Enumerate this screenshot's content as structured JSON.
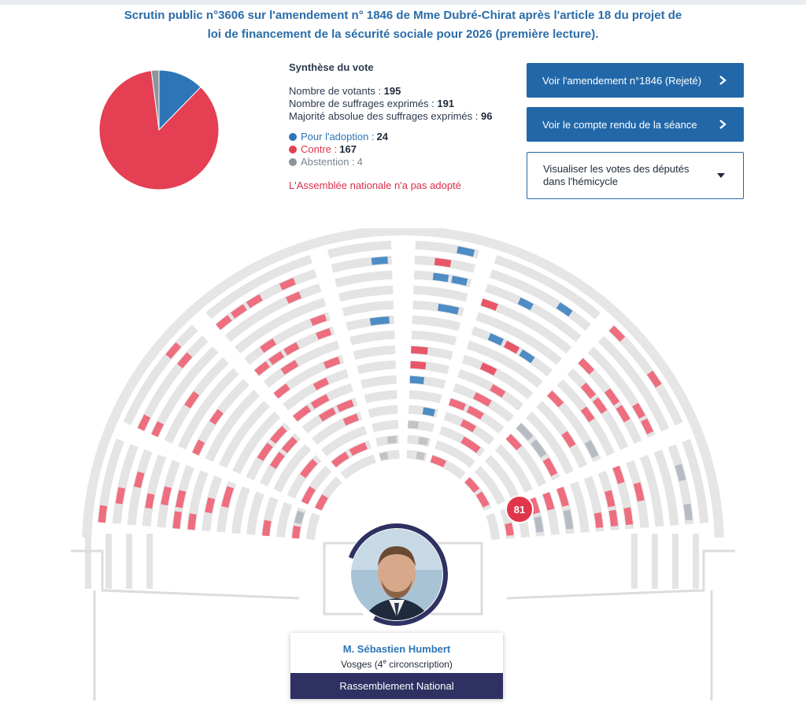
{
  "title": "Scrutin public n°3606 sur l'amendement n° 1846 de Mme Dubré-Chirat après l'article 18 du projet de loi de financement de la sécurité sociale pour 2026 (première lecture).",
  "synthese": {
    "heading": "Synthèse du vote",
    "votants_label": "Nombre de votants : ",
    "votants": "195",
    "exprimes_label": "Nombre de suffrages exprimés : ",
    "exprimes": "191",
    "majorite_label": "Majorité absolue des suffrages exprimés : ",
    "majorite": "96",
    "pour_label": "Pour l'adoption : ",
    "pour": "24",
    "contre_label": "Contre : ",
    "contre": "167",
    "abstention_label": "Abstention : ",
    "abstention": "4",
    "verdict": "L'Assemblée nationale n'a pas adopté"
  },
  "chart_data": {
    "type": "pie",
    "categories": [
      "Pour l'adoption",
      "Contre",
      "Abstention"
    ],
    "values": [
      24,
      167,
      4
    ],
    "colors": [
      "#2d75b6",
      "#e43f52",
      "#8c949e"
    ]
  },
  "buttons": {
    "amendement": "Voir l'amendement n°1846 (Rejeté)",
    "compte_rendu": "Voir le compte rendu de la séance",
    "hemicycle": "Visualiser les votes des députés dans l'hémicycle"
  },
  "icons": {
    "chevron_right": "chevron-right-icon",
    "chevron_down": "chevron-down-icon"
  },
  "hemicycle": {
    "seat_badge": "81"
  },
  "depute": {
    "name": "M. Sébastien Humbert",
    "circ_prefix": "Vosges (4",
    "circ_sup": "e",
    "circ_suffix": " circonscription)",
    "party": "Rassemblement National"
  },
  "colors": {
    "pour": "#2d75b6",
    "contre": "#e43f52",
    "abstention": "#8c949e",
    "accent": "#2268a9",
    "party": "#2e3161"
  }
}
